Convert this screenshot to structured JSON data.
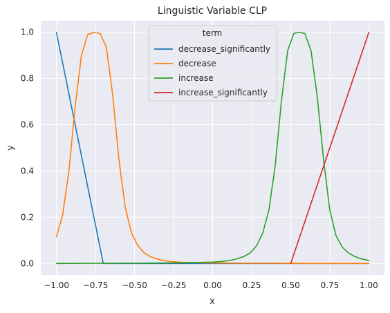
{
  "chart_data": {
    "type": "line",
    "title": "Linguistic Variable CLP",
    "xlabel": "x",
    "ylabel": "y",
    "xlim": [
      -1.1,
      1.1
    ],
    "ylim": [
      -0.05,
      1.05
    ],
    "xticks": [
      -1.0,
      -0.75,
      -0.5,
      -0.25,
      0.0,
      0.25,
      0.5,
      0.75,
      1.0
    ],
    "xtick_labels": [
      "−1.00",
      "−0.75",
      "−0.50",
      "−0.25",
      "0.00",
      "0.25",
      "0.50",
      "0.75",
      "1.00"
    ],
    "yticks": [
      0.0,
      0.2,
      0.4,
      0.6,
      0.8,
      1.0
    ],
    "ytick_labels": [
      "0.0",
      "0.2",
      "0.4",
      "0.6",
      "0.8",
      "1.0"
    ],
    "grid": true,
    "legend": {
      "title": "term",
      "position": "top-center"
    },
    "series": [
      {
        "name": "decrease_significantly",
        "color": "#1f77b4",
        "x": [
          -1.0,
          -0.7,
          1.0
        ],
        "y": [
          1.0,
          0.0,
          0.0
        ]
      },
      {
        "name": "decrease",
        "color": "#ff7f0e",
        "x": [
          -1.0,
          -0.96,
          -0.92,
          -0.88,
          -0.84,
          -0.8,
          -0.76,
          -0.72,
          -0.68,
          -0.64,
          -0.6,
          -0.56,
          -0.52,
          -0.48,
          -0.44,
          -0.4,
          -0.36,
          -0.32,
          -0.28,
          -0.24,
          -0.2,
          -0.1,
          0.0,
          0.2,
          0.4,
          0.6,
          0.8,
          1.0
        ],
        "y": [
          0.115,
          0.21,
          0.4,
          0.68,
          0.9,
          0.99,
          1.0,
          0.995,
          0.935,
          0.73,
          0.45,
          0.245,
          0.133,
          0.078,
          0.047,
          0.03,
          0.02,
          0.013,
          0.009,
          0.007,
          0.005,
          0.003,
          0.002,
          0.001,
          0.001,
          0.0,
          0.0,
          0.0
        ]
      },
      {
        "name": "increase",
        "color": "#2ca02c",
        "x": [
          -1.0,
          -0.5,
          -0.3,
          -0.2,
          -0.1,
          0.0,
          0.05,
          0.1,
          0.15,
          0.2,
          0.24,
          0.28,
          0.32,
          0.36,
          0.4,
          0.44,
          0.48,
          0.52,
          0.55,
          0.59,
          0.63,
          0.67,
          0.71,
          0.75,
          0.79,
          0.83,
          0.87,
          0.91,
          0.95,
          1.0
        ],
        "y": [
          0.0,
          0.001,
          0.002,
          0.003,
          0.004,
          0.006,
          0.008,
          0.012,
          0.019,
          0.03,
          0.045,
          0.075,
          0.13,
          0.23,
          0.42,
          0.7,
          0.92,
          0.995,
          1.0,
          0.995,
          0.92,
          0.72,
          0.45,
          0.23,
          0.12,
          0.07,
          0.045,
          0.03,
          0.02,
          0.013
        ]
      },
      {
        "name": "increase_significantly",
        "color": "#d62728",
        "x": [
          0.5,
          1.0
        ],
        "y": [
          0.0,
          1.0
        ]
      }
    ]
  }
}
